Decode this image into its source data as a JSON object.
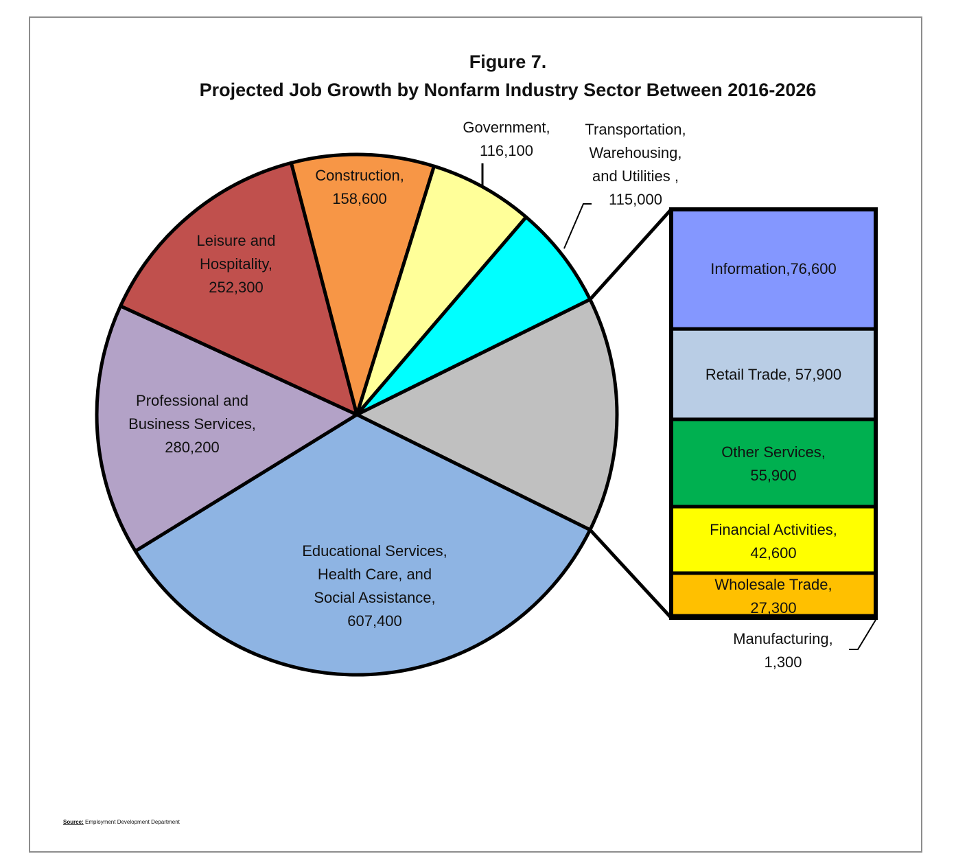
{
  "chart_data": {
    "type": "pie",
    "subtype": "bar-of-pie",
    "title_line1": "Figure 7.",
    "title_line2": "Projected Job Growth by Nonfarm Industry Sector Between 2016-2026",
    "pie_slices": [
      {
        "label": "Educational Services,\nHealth Care, and\nSocial Assistance,",
        "value_label": "607,400",
        "value": 607400,
        "color": "#8eb4e3"
      },
      {
        "label": "Professional and\nBusiness Services,",
        "value_label": "280,200",
        "value": 280200,
        "color": "#b3a2c7"
      },
      {
        "label": "Leisure and\nHospitality,",
        "value_label": "252,300",
        "value": 252300,
        "color": "#c0504d"
      },
      {
        "label": "Construction,",
        "value_label": "158,600",
        "value": 158600,
        "color": "#f79646"
      },
      {
        "label": "Government,",
        "value_label": "116,100",
        "value": 116100,
        "color": "#ffff99"
      },
      {
        "label": "Transportation,\nWarehousing,\nand Utilities ,",
        "value_label": "115,000",
        "value": 115000,
        "color": "#00ffff"
      }
    ],
    "other_slice_color": "#c0c0c0",
    "bar_slices": [
      {
        "label": "Information,",
        "value_label": "76,600",
        "value": 76600,
        "color": "#8497ff"
      },
      {
        "label": "Retail Trade,",
        "value_label": "57,900",
        "value": 57900,
        "color": "#b9cde5"
      },
      {
        "label": "Other Services,",
        "value_label": "55,900",
        "value": 55900,
        "color": "#00b050"
      },
      {
        "label": "Financial Activities,",
        "value_label": "42,600",
        "value": 42600,
        "color": "#ffff00"
      },
      {
        "label": "Wholesale Trade,",
        "value_label": "27,300",
        "value": 27300,
        "color": "#ffc000"
      },
      {
        "label": "Manufacturing,",
        "value_label": "1,300",
        "value": 1300,
        "color": "#c0c0c0"
      }
    ]
  },
  "source": {
    "label": "Source:",
    "text": " Employment Development Department"
  }
}
